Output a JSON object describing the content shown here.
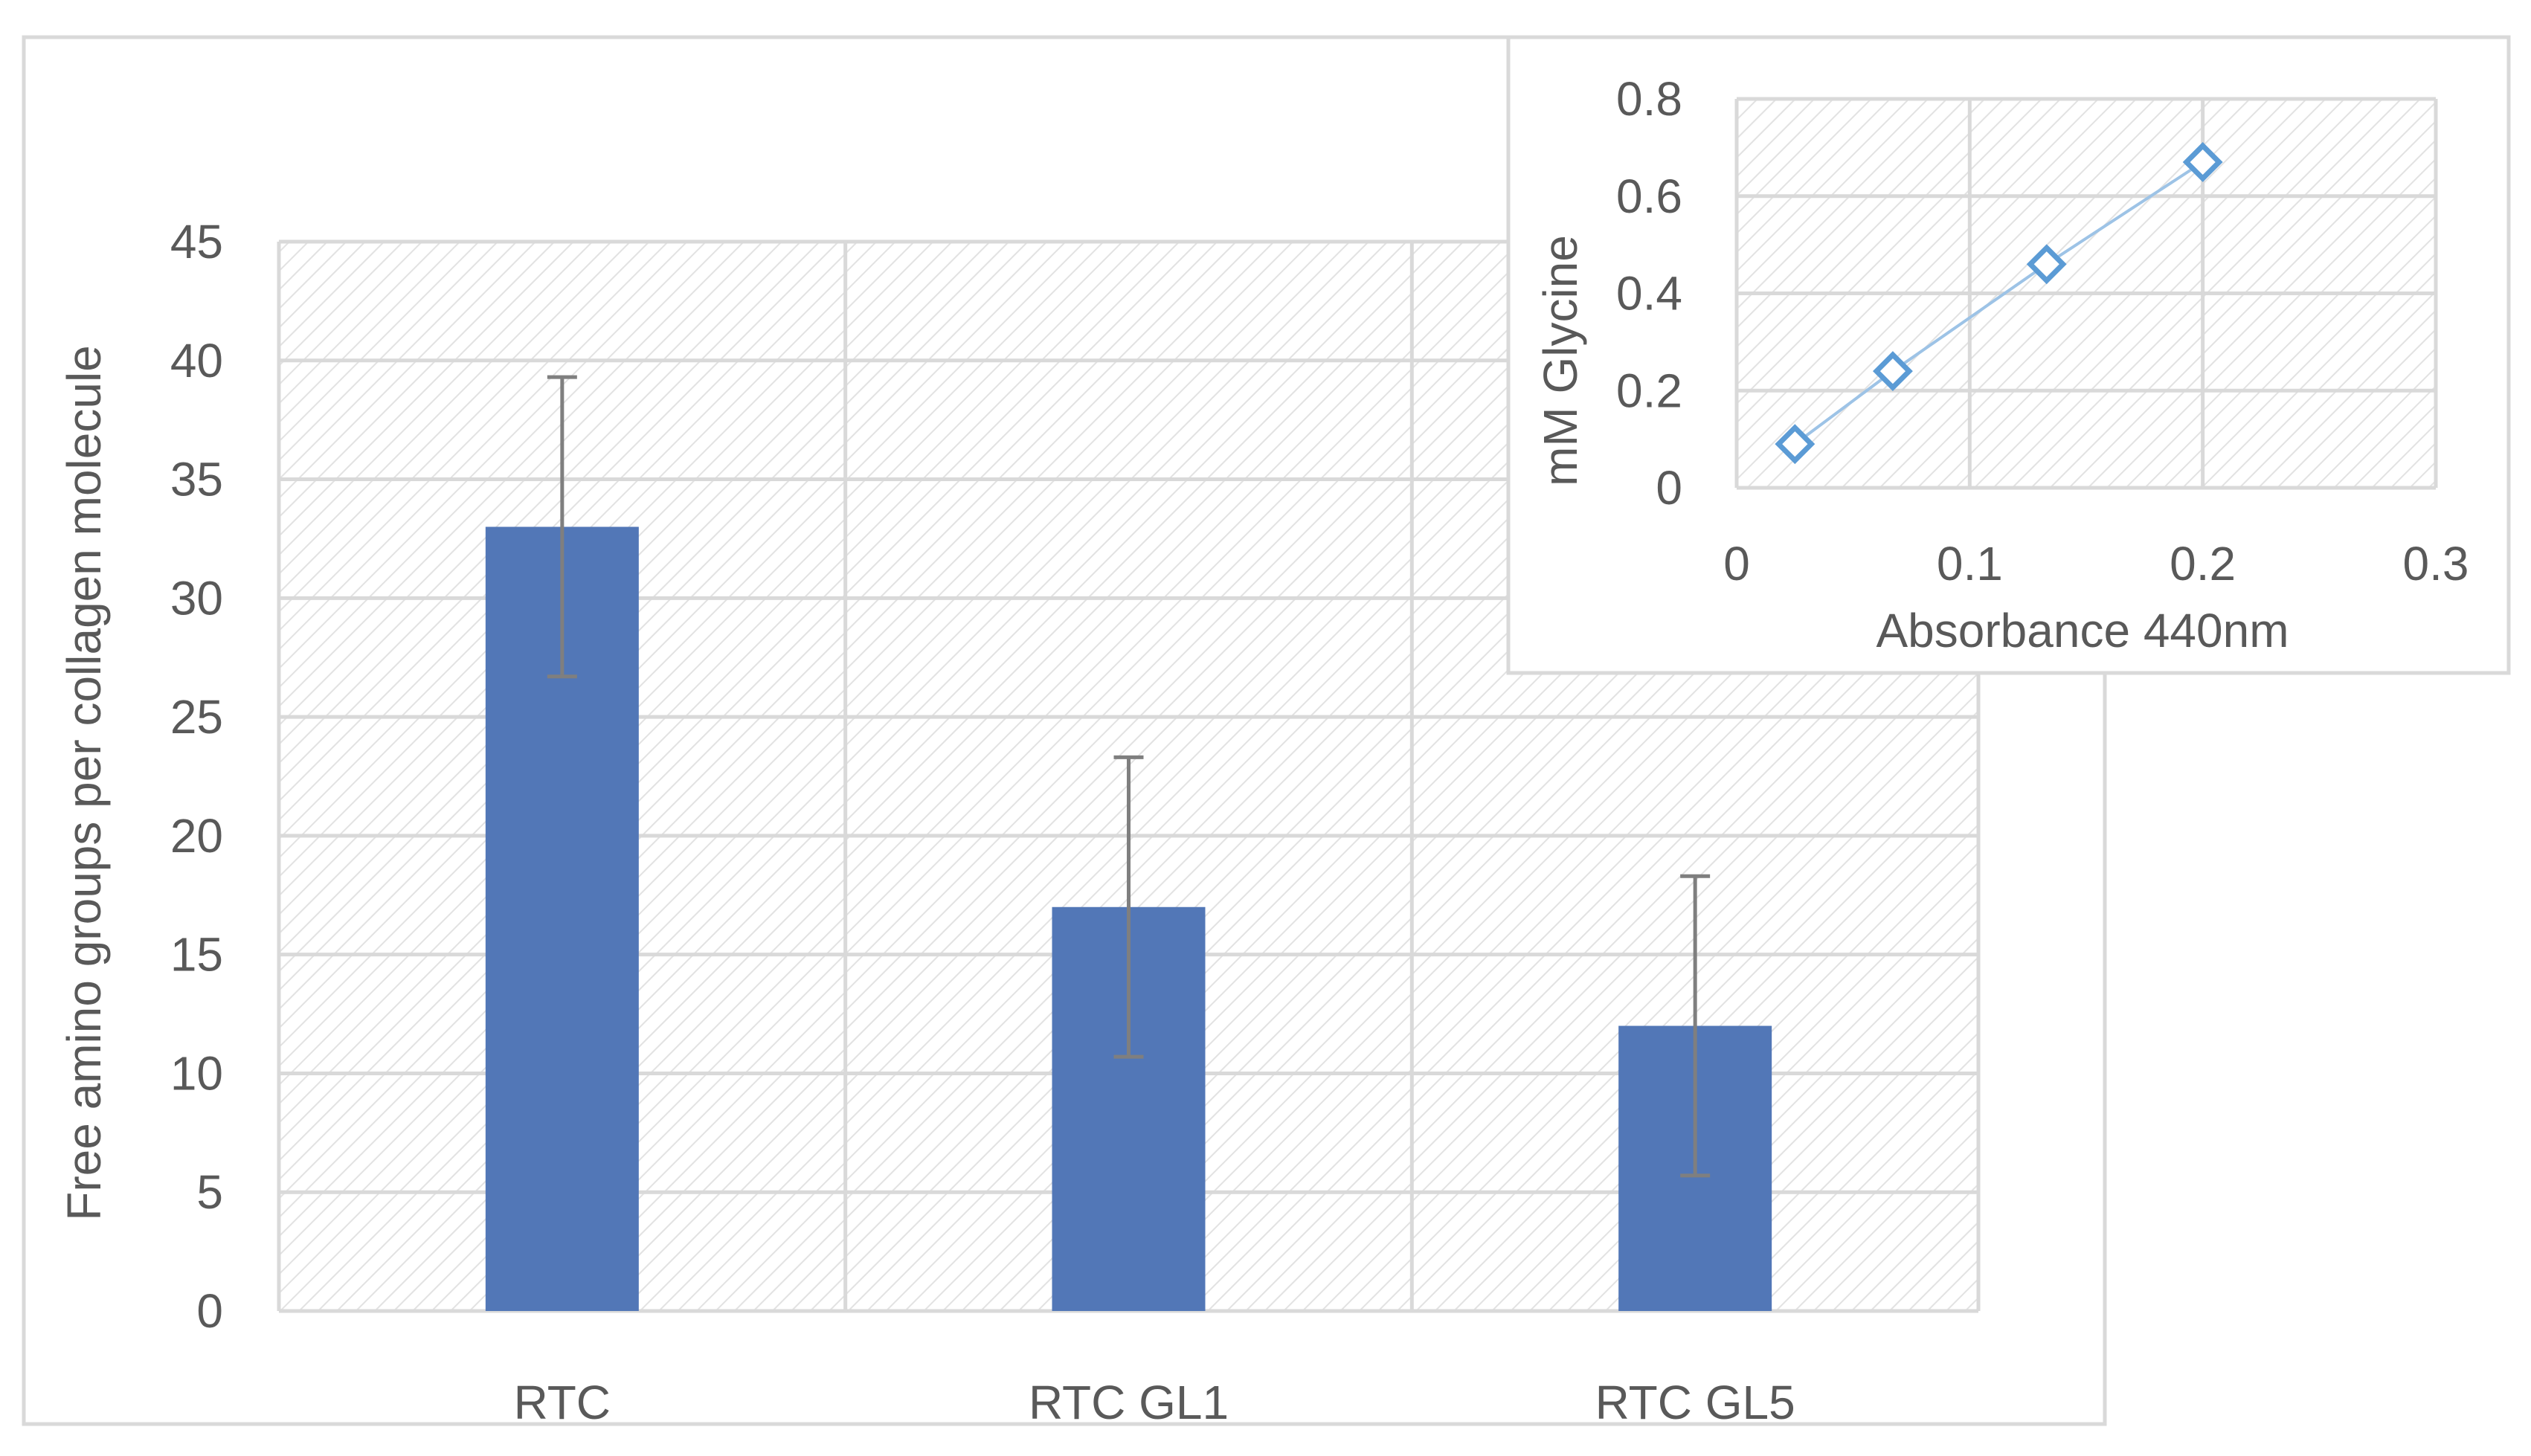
{
  "chart_data": [
    {
      "type": "bar",
      "title": "",
      "xlabel": "",
      "ylabel": "Free amino groups per collagen molecule",
      "categories": [
        "RTC",
        "RTC GL1",
        "RTC GL5"
      ],
      "series": [
        {
          "values": [
            33,
            17,
            12
          ],
          "error": [
            6.3,
            6.3,
            6.3
          ],
          "color": "#5277B7"
        }
      ],
      "ylim": [
        0,
        45
      ],
      "yticks": [
        "0",
        "5",
        "10",
        "15",
        "20",
        "25",
        "30",
        "35",
        "40",
        "45"
      ],
      "grid": true,
      "legend": "none",
      "plot_background": "diagonal hatch"
    },
    {
      "type": "scatter",
      "title": "",
      "xlabel": "Absorbance  440nm",
      "ylabel": "mM  Glycine",
      "series": [
        {
          "x": [
            0.025,
            0.067,
            0.133,
            0.2
          ],
          "y": [
            0.09,
            0.24,
            0.46,
            0.67
          ],
          "marker": "diamond-open",
          "line": true,
          "color": "#5B9BD5"
        }
      ],
      "xlim": [
        0,
        0.3
      ],
      "ylim": [
        0,
        0.8
      ],
      "xticks": [
        "0",
        "0.1",
        "0.2",
        "0.3"
      ],
      "yticks": [
        "0",
        "0.2",
        "0.4",
        "0.6",
        "0.8"
      ],
      "grid": true,
      "legend": "none",
      "placement": "inset top-right",
      "plot_background": "diagonal hatch"
    }
  ],
  "colors": {
    "gridline": "#D9D9D9",
    "frame": "#D9D9D9",
    "text": "#595959",
    "errorbar": "#7F7F7F"
  }
}
